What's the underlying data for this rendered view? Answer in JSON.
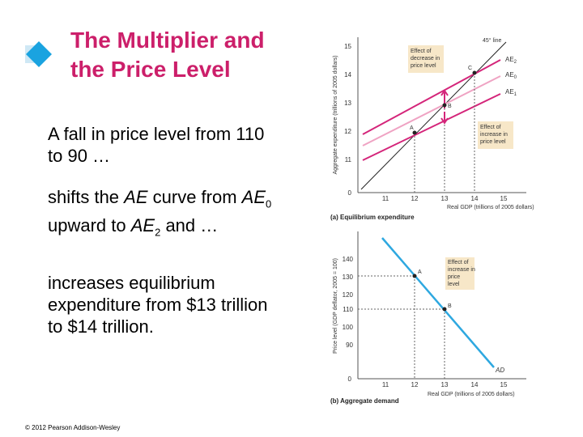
{
  "slide": {
    "title_line1": "The Multiplier and",
    "title_line2": "the Price Level",
    "bullets": {
      "b1": "A fall in price level from 110 to 90 …",
      "b2_pre": "shifts the ",
      "b2_ae": "AE",
      "b2_mid": " curve from ",
      "b2_ae0": "AE",
      "b2_sub0": "0",
      "b2_mid2": " upward to ",
      "b2_ae2": "AE",
      "b2_sub2": "2",
      "b2_post": " and …",
      "b3": "increases equilibrium expenditure from $13 trillion to $14 trillion."
    },
    "copyright": "© 2012 Pearson Addison-Wesley"
  },
  "colors": {
    "title": "#cc1f6a",
    "icon": "#1aa3e0",
    "ae_dark": "#d4257a",
    "ae_light": "#efa3c3",
    "ad": "#2ea8e0",
    "callout": "#f7e7c8"
  },
  "figure_a": {
    "ylabel": "Aggregate expenditure (trillions of 2005 dollars)",
    "xlabel": "Real GDP (trillions of 2005 dollars)",
    "caption": "(a) Equilibrium expenditure",
    "y_ticks": [
      "15",
      "14",
      "13",
      "12",
      "11"
    ],
    "x_ticks": [
      "11",
      "12",
      "13",
      "14",
      "15"
    ],
    "origin": "0",
    "line_45": "45° line",
    "ae_labels": [
      "AE2",
      "AE0",
      "AE1"
    ],
    "ae_labels_parts": [
      [
        "AE",
        "2"
      ],
      [
        "AE",
        "0"
      ],
      [
        "AE",
        "1"
      ]
    ],
    "points": [
      "A",
      "B",
      "C"
    ],
    "callout_top": [
      "Effect of",
      "decrease in",
      "price level"
    ],
    "callout_bottom": [
      "Effect of",
      "increase in",
      "price level"
    ]
  },
  "figure_b": {
    "ylabel": "Price level (GDP deflator, 2005 = 100)",
    "xlabel": "Real GDP (trillions of 2005 dollars)",
    "caption": "(b) Aggregate demand",
    "y_ticks": [
      "140",
      "130",
      "120",
      "110",
      "100",
      "90"
    ],
    "x_ticks": [
      "11",
      "12",
      "13",
      "14",
      "15"
    ],
    "origin": "0",
    "ad_label": "AD",
    "points": [
      "A",
      "B"
    ],
    "callout": [
      "Effect of",
      "increase in",
      "price",
      "level"
    ]
  }
}
